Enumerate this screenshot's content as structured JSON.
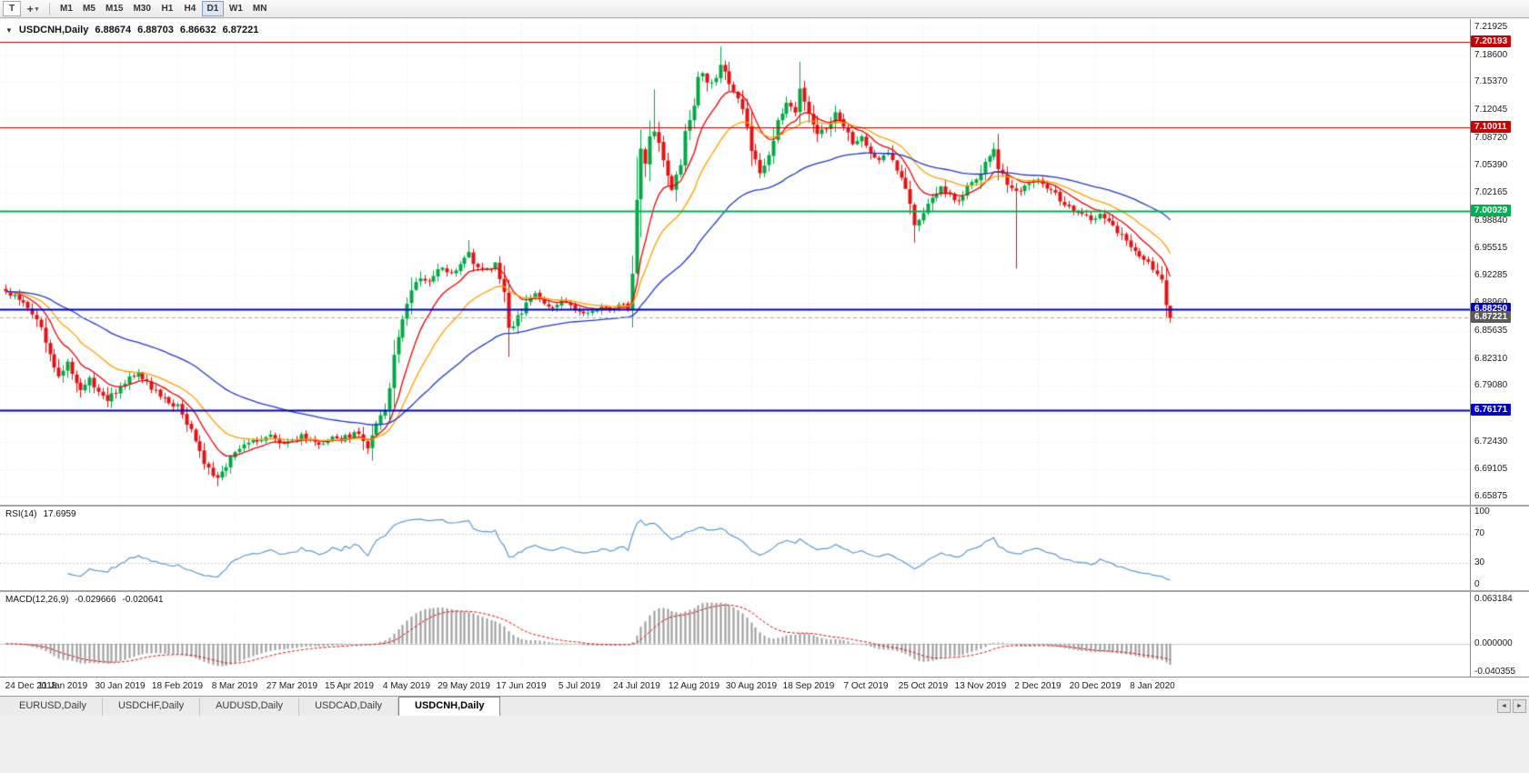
{
  "icons": {
    "crosshair": "+",
    "dropdown": "▾",
    "collapse": "▼",
    "tab_scroll_left": "◄",
    "tab_scroll_right": "►"
  },
  "toolbar": {
    "text_tool": "T",
    "timeframes": [
      "M1",
      "M5",
      "M15",
      "M30",
      "H1",
      "H4",
      "D1",
      "W1",
      "MN"
    ],
    "active_timeframe": "D1"
  },
  "chart_header": {
    "symbol_timeframe": "USDCNH,Daily",
    "open": "6.88674",
    "high": "6.88703",
    "low": "6.86632",
    "close": "6.87221"
  },
  "chart_data": {
    "type": "candlestick",
    "symbol": "USDCNH",
    "timeframe": "Daily",
    "n_bars": 265,
    "price_axis": {
      "min": 6.65875,
      "max": 7.21925,
      "ticks": [
        "7.21925",
        "7.18600",
        "7.15370",
        "7.12045",
        "7.08720",
        "7.05390",
        "7.02165",
        "6.98840",
        "6.95515",
        "6.92285",
        "6.88960",
        "6.85635",
        "6.82310",
        "6.79080",
        "6.75755",
        "6.72430",
        "6.69105",
        "6.65875"
      ]
    },
    "x_axis_labels": [
      {
        "bar": 0,
        "text": "24 Dec 2018"
      },
      {
        "bar": 13,
        "text": "11 Jan 2019"
      },
      {
        "bar": 26,
        "text": "30 Jan 2019"
      },
      {
        "bar": 39,
        "text": "18 Feb 2019"
      },
      {
        "bar": 52,
        "text": "8 Mar 2019"
      },
      {
        "bar": 65,
        "text": "27 Mar 2019"
      },
      {
        "bar": 78,
        "text": "15 Apr 2019"
      },
      {
        "bar": 91,
        "text": "4 May 2019"
      },
      {
        "bar": 104,
        "text": "29 May 2019"
      },
      {
        "bar": 117,
        "text": "17 Jun 2019"
      },
      {
        "bar": 130,
        "text": "5 Jul 2019"
      },
      {
        "bar": 143,
        "text": "24 Jul 2019"
      },
      {
        "bar": 156,
        "text": "12 Aug 2019"
      },
      {
        "bar": 169,
        "text": "30 Aug 2019"
      },
      {
        "bar": 182,
        "text": "18 Sep 2019"
      },
      {
        "bar": 195,
        "text": "7 Oct 2019"
      },
      {
        "bar": 208,
        "text": "25 Oct 2019"
      },
      {
        "bar": 221,
        "text": "13 Nov 2019"
      },
      {
        "bar": 234,
        "text": "2 Dec 2019"
      },
      {
        "bar": 247,
        "text": "20 Dec 2019"
      },
      {
        "bar": 260,
        "text": "8 Jan 2020"
      }
    ],
    "close_waypoints": [
      [
        0,
        6.905
      ],
      [
        3,
        6.895
      ],
      [
        5,
        6.886
      ],
      [
        8,
        6.858
      ],
      [
        10,
        6.826
      ],
      [
        12,
        6.802
      ],
      [
        14,
        6.818
      ],
      [
        17,
        6.787
      ],
      [
        19,
        6.799
      ],
      [
        23,
        6.773
      ],
      [
        26,
        6.792
      ],
      [
        30,
        6.806
      ],
      [
        34,
        6.784
      ],
      [
        39,
        6.766
      ],
      [
        42,
        6.738
      ],
      [
        45,
        6.701
      ],
      [
        48,
        6.679
      ],
      [
        51,
        6.704
      ],
      [
        54,
        6.718
      ],
      [
        57,
        6.727
      ],
      [
        60,
        6.731
      ],
      [
        63,
        6.721
      ],
      [
        67,
        6.731
      ],
      [
        70,
        6.723
      ],
      [
        74,
        6.727
      ],
      [
        77,
        6.729
      ],
      [
        80,
        6.735
      ],
      [
        82,
        6.713
      ],
      [
        84,
        6.744
      ],
      [
        86,
        6.761
      ],
      [
        87,
        6.788
      ],
      [
        88,
        6.827
      ],
      [
        90,
        6.871
      ],
      [
        92,
        6.902
      ],
      [
        94,
        6.922
      ],
      [
        96,
        6.913
      ],
      [
        98,
        6.931
      ],
      [
        101,
        6.927
      ],
      [
        103,
        6.937
      ],
      [
        105,
        6.95
      ],
      [
        106,
        6.94
      ],
      [
        108,
        6.931
      ],
      [
        111,
        6.935
      ],
      [
        113,
        6.901
      ],
      [
        114,
        6.857
      ],
      [
        116,
        6.873
      ],
      [
        118,
        6.888
      ],
      [
        120,
        6.9
      ],
      [
        123,
        6.886
      ],
      [
        126,
        6.891
      ],
      [
        129,
        6.884
      ],
      [
        132,
        6.879
      ],
      [
        135,
        6.883
      ],
      [
        139,
        6.886
      ],
      [
        141,
        6.886
      ],
      [
        142,
        6.924
      ],
      [
        143,
        7.014
      ],
      [
        144,
        7.073
      ],
      [
        145,
        7.057
      ],
      [
        146,
        7.086
      ],
      [
        147,
        7.096
      ],
      [
        149,
        7.061
      ],
      [
        150,
        7.043
      ],
      [
        151,
        7.023
      ],
      [
        153,
        7.057
      ],
      [
        154,
        7.094
      ],
      [
        156,
        7.127
      ],
      [
        157,
        7.157
      ],
      [
        158,
        7.167
      ],
      [
        159,
        7.151
      ],
      [
        161,
        7.161
      ],
      [
        162,
        7.177
      ],
      [
        163,
        7.167
      ],
      [
        164,
        7.154
      ],
      [
        166,
        7.137
      ],
      [
        168,
        7.101
      ],
      [
        169,
        7.073
      ],
      [
        171,
        7.047
      ],
      [
        173,
        7.067
      ],
      [
        175,
        7.107
      ],
      [
        177,
        7.127
      ],
      [
        179,
        7.117
      ],
      [
        180,
        7.147
      ],
      [
        182,
        7.117
      ],
      [
        184,
        7.092
      ],
      [
        186,
        7.097
      ],
      [
        188,
        7.117
      ],
      [
        190,
        7.099
      ],
      [
        192,
        7.082
      ],
      [
        194,
        7.089
      ],
      [
        196,
        7.071
      ],
      [
        198,
        7.061
      ],
      [
        200,
        7.067
      ],
      [
        203,
        7.041
      ],
      [
        205,
        7.011
      ],
      [
        206,
        6.986
      ],
      [
        208,
        6.999
      ],
      [
        210,
        7.017
      ],
      [
        212,
        7.027
      ],
      [
        214,
        7.019
      ],
      [
        216,
        7.013
      ],
      [
        218,
        7.027
      ],
      [
        220,
        7.037
      ],
      [
        222,
        7.057
      ],
      [
        224,
        7.077
      ],
      [
        225,
        7.051
      ],
      [
        227,
        7.031
      ],
      [
        229,
        7.021
      ],
      [
        232,
        7.033
      ],
      [
        234,
        7.039
      ],
      [
        236,
        7.029
      ],
      [
        238,
        7.019
      ],
      [
        240,
        7.009
      ],
      [
        242,
        7.001
      ],
      [
        244,
        6.995
      ],
      [
        246,
        6.989
      ],
      [
        248,
        6.995
      ],
      [
        250,
        6.987
      ],
      [
        252,
        6.975
      ],
      [
        254,
        6.963
      ],
      [
        256,
        6.953
      ],
      [
        258,
        6.943
      ],
      [
        260,
        6.933
      ],
      [
        262,
        6.917
      ],
      [
        263,
        6.888
      ],
      [
        264,
        6.87221
      ]
    ],
    "wick_overrides": [
      {
        "i": 105,
        "high": 6.965
      },
      {
        "i": 147,
        "high": 7.145
      },
      {
        "i": 162,
        "high": 7.196
      },
      {
        "i": 180,
        "high": 7.178
      },
      {
        "i": 229,
        "low": 6.931
      },
      {
        "i": 264,
        "open": 6.88674,
        "high": 6.88703,
        "low": 6.86632,
        "close": 6.87221
      }
    ],
    "last_bar": {
      "open": 6.88674,
      "high": 6.88703,
      "low": 6.86632,
      "close": 6.87221
    },
    "horizontal_lines": [
      {
        "price": 7.20193,
        "label": "7.20193",
        "color": "#cc0000",
        "width": 1
      },
      {
        "price": 7.10011,
        "label": "7.10011",
        "color": "#cc0000",
        "width": 1
      },
      {
        "price": 7.00029,
        "label": "7.00029",
        "color": "#00b050",
        "width": 2
      },
      {
        "price": 6.8825,
        "label": "6.88250",
        "color": "#0000cc",
        "width": 2
      },
      {
        "price": 6.76171,
        "label": "6.76171",
        "color": "#0000cc",
        "width": 2
      }
    ],
    "current_price": {
      "value": 6.87221,
      "label": "6.87221",
      "badge_color": "#5a5a5a"
    },
    "candle_colors": {
      "up": "#00a944",
      "down": "#e81010"
    },
    "moving_averages": [
      {
        "period": 10,
        "color": "#f00000",
        "type": "ema"
      },
      {
        "period": 21,
        "color": "#ffa000",
        "type": "ema"
      },
      {
        "period": 55,
        "color": "#2038d0",
        "type": "ema"
      }
    ],
    "rsi": {
      "name": "RSI(14)",
      "period": 14,
      "value_label": "17.6959",
      "color": "#5a9bd4",
      "levels": [
        70,
        30
      ],
      "axis_ticks": [
        {
          "v": 100,
          "text": "100"
        },
        {
          "v": 70,
          "text": "70"
        },
        {
          "v": 30,
          "text": "30"
        },
        {
          "v": 0,
          "text": "0"
        }
      ]
    },
    "macd": {
      "name": "MACD(12,26,9)",
      "fast": 12,
      "slow": 26,
      "signal": 9,
      "main_value": "-0.029666",
      "signal_value": "-0.020641",
      "histogram_color": "#9a9a9a",
      "signal_color": "#e00000",
      "axis": {
        "min": -0.040355,
        "max": 0.063184,
        "ticks": [
          {
            "v": 0.063184,
            "text": "0.063184"
          },
          {
            "v": 0,
            "text": "0.000000"
          },
          {
            "v": -0.040355,
            "text": "-0.040355"
          }
        ]
      }
    }
  },
  "tabs": {
    "items": [
      "EURUSD,Daily",
      "USDCHF,Daily",
      "AUDUSD,Daily",
      "USDCAD,Daily",
      "USDCNH,Daily"
    ],
    "active_index": 4
  }
}
